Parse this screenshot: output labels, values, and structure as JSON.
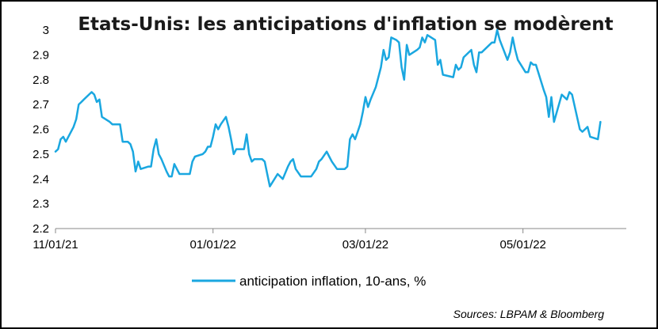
{
  "chart_data": {
    "type": "line",
    "title": "Etats-Unis: les anticipations d'inflation se modèrent",
    "xlabel": "",
    "ylabel": "",
    "ylim": [
      2.2,
      3.0
    ],
    "yticks": [
      "3",
      "2.9",
      "2.8",
      "2.7",
      "2.6",
      "2.5",
      "2.4",
      "2.3",
      "2.2"
    ],
    "xlim": [
      "2021-11-01",
      "2022-06-10"
    ],
    "xticks": [
      {
        "date": "2021-11-01",
        "label": "11/01/21"
      },
      {
        "date": "2022-01-01",
        "label": "01/01/22"
      },
      {
        "date": "2022-03-01",
        "label": "03/01/22"
      },
      {
        "date": "2022-05-01",
        "label": "05/01/22"
      }
    ],
    "grid": false,
    "legend_position": "bottom",
    "source": "Sources: LBPAM & Bloomberg",
    "series": [
      {
        "name": "anticipation inflation, 10-ans, %",
        "color": "#1aa7e0",
        "points": [
          [
            "2021-11-01",
            2.51
          ],
          [
            "2021-11-02",
            2.52
          ],
          [
            "2021-11-03",
            2.56
          ],
          [
            "2021-11-04",
            2.57
          ],
          [
            "2021-11-05",
            2.55
          ],
          [
            "2021-11-08",
            2.61
          ],
          [
            "2021-11-09",
            2.64
          ],
          [
            "2021-11-10",
            2.7
          ],
          [
            "2021-11-11",
            2.71
          ],
          [
            "2021-11-12",
            2.72
          ],
          [
            "2021-11-15",
            2.75
          ],
          [
            "2021-11-16",
            2.74
          ],
          [
            "2021-11-17",
            2.71
          ],
          [
            "2021-11-18",
            2.72
          ],
          [
            "2021-11-19",
            2.65
          ],
          [
            "2021-11-22",
            2.63
          ],
          [
            "2021-11-23",
            2.62
          ],
          [
            "2021-11-26",
            2.62
          ],
          [
            "2021-11-27",
            2.55
          ],
          [
            "2021-11-29",
            2.55
          ],
          [
            "2021-11-30",
            2.54
          ],
          [
            "2021-12-01",
            2.51
          ],
          [
            "2021-12-02",
            2.43
          ],
          [
            "2021-12-03",
            2.47
          ],
          [
            "2021-12-04",
            2.44
          ],
          [
            "2021-12-07",
            2.45
          ],
          [
            "2021-12-08",
            2.45
          ],
          [
            "2021-12-09",
            2.52
          ],
          [
            "2021-12-10",
            2.56
          ],
          [
            "2021-12-11",
            2.5
          ],
          [
            "2021-12-12",
            2.48
          ],
          [
            "2021-12-14",
            2.43
          ],
          [
            "2021-12-15",
            2.41
          ],
          [
            "2021-12-16",
            2.41
          ],
          [
            "2021-12-17",
            2.46
          ],
          [
            "2021-12-18",
            2.44
          ],
          [
            "2021-12-19",
            2.42
          ],
          [
            "2021-12-23",
            2.42
          ],
          [
            "2021-12-24",
            2.47
          ],
          [
            "2021-12-25",
            2.49
          ],
          [
            "2021-12-28",
            2.5
          ],
          [
            "2021-12-29",
            2.51
          ],
          [
            "2021-12-30",
            2.53
          ],
          [
            "2021-12-31",
            2.53
          ],
          [
            "2022-01-01",
            2.57
          ],
          [
            "2022-01-02",
            2.62
          ],
          [
            "2022-01-03",
            2.6
          ],
          [
            "2022-01-04",
            2.62
          ],
          [
            "2022-01-06",
            2.65
          ],
          [
            "2022-01-07",
            2.61
          ],
          [
            "2022-01-08",
            2.56
          ],
          [
            "2022-01-09",
            2.5
          ],
          [
            "2022-01-10",
            2.52
          ],
          [
            "2022-01-13",
            2.52
          ],
          [
            "2022-01-14",
            2.58
          ],
          [
            "2022-01-15",
            2.5
          ],
          [
            "2022-01-16",
            2.47
          ],
          [
            "2022-01-17",
            2.48
          ],
          [
            "2022-01-20",
            2.48
          ],
          [
            "2022-01-21",
            2.47
          ],
          [
            "2022-01-22",
            2.42
          ],
          [
            "2022-01-23",
            2.37
          ],
          [
            "2022-01-26",
            2.42
          ],
          [
            "2022-01-27",
            2.41
          ],
          [
            "2022-01-28",
            2.4
          ],
          [
            "2022-01-30",
            2.45
          ],
          [
            "2022-01-31",
            2.47
          ],
          [
            "2022-02-01",
            2.48
          ],
          [
            "2022-02-02",
            2.44
          ],
          [
            "2022-02-04",
            2.41
          ],
          [
            "2022-02-05",
            2.41
          ],
          [
            "2022-02-07",
            2.41
          ],
          [
            "2022-02-08",
            2.41
          ],
          [
            "2022-02-10",
            2.44
          ],
          [
            "2022-02-11",
            2.47
          ],
          [
            "2022-02-12",
            2.48
          ],
          [
            "2022-02-14",
            2.51
          ],
          [
            "2022-02-15",
            2.49
          ],
          [
            "2022-02-16",
            2.47
          ],
          [
            "2022-02-18",
            2.44
          ],
          [
            "2022-02-21",
            2.44
          ],
          [
            "2022-02-22",
            2.45
          ],
          [
            "2022-02-23",
            2.56
          ],
          [
            "2022-02-24",
            2.58
          ],
          [
            "2022-02-25",
            2.56
          ],
          [
            "2022-02-26",
            2.59
          ],
          [
            "2022-02-27",
            2.62
          ],
          [
            "2022-02-28",
            2.67
          ],
          [
            "2022-03-01",
            2.73
          ],
          [
            "2022-03-02",
            2.69
          ],
          [
            "2022-03-03",
            2.72
          ],
          [
            "2022-03-05",
            2.77
          ],
          [
            "2022-03-07",
            2.85
          ],
          [
            "2022-03-08",
            2.92
          ],
          [
            "2022-03-09",
            2.88
          ],
          [
            "2022-03-10",
            2.89
          ],
          [
            "2022-03-11",
            2.97
          ],
          [
            "2022-03-13",
            2.96
          ],
          [
            "2022-03-14",
            2.95
          ],
          [
            "2022-03-15",
            2.85
          ],
          [
            "2022-03-16",
            2.8
          ],
          [
            "2022-03-17",
            2.94
          ],
          [
            "2022-03-18",
            2.9
          ],
          [
            "2022-03-21",
            2.92
          ],
          [
            "2022-03-22",
            2.93
          ],
          [
            "2022-03-23",
            2.97
          ],
          [
            "2022-03-24",
            2.95
          ],
          [
            "2022-03-25",
            2.98
          ],
          [
            "2022-03-28",
            2.96
          ],
          [
            "2022-03-29",
            2.86
          ],
          [
            "2022-03-30",
            2.88
          ],
          [
            "2022-03-31",
            2.82
          ],
          [
            "2022-04-04",
            2.81
          ],
          [
            "2022-04-05",
            2.86
          ],
          [
            "2022-04-06",
            2.84
          ],
          [
            "2022-04-07",
            2.85
          ],
          [
            "2022-04-08",
            2.89
          ],
          [
            "2022-04-11",
            2.92
          ],
          [
            "2022-04-12",
            2.86
          ],
          [
            "2022-04-13",
            2.83
          ],
          [
            "2022-04-14",
            2.91
          ],
          [
            "2022-04-15",
            2.91
          ],
          [
            "2022-04-18",
            2.94
          ],
          [
            "2022-04-19",
            2.95
          ],
          [
            "2022-04-20",
            2.95
          ],
          [
            "2022-04-21",
            3.0
          ],
          [
            "2022-04-22",
            2.96
          ],
          [
            "2022-04-25",
            2.88
          ],
          [
            "2022-04-26",
            2.91
          ],
          [
            "2022-04-27",
            2.97
          ],
          [
            "2022-04-28",
            2.92
          ],
          [
            "2022-04-29",
            2.88
          ],
          [
            "2022-05-02",
            2.83
          ],
          [
            "2022-05-03",
            2.83
          ],
          [
            "2022-05-04",
            2.87
          ],
          [
            "2022-05-05",
            2.86
          ],
          [
            "2022-05-06",
            2.86
          ],
          [
            "2022-05-09",
            2.76
          ],
          [
            "2022-05-10",
            2.73
          ],
          [
            "2022-05-11",
            2.65
          ],
          [
            "2022-05-12",
            2.73
          ],
          [
            "2022-05-13",
            2.63
          ],
          [
            "2022-05-16",
            2.74
          ],
          [
            "2022-05-17",
            2.73
          ],
          [
            "2022-05-18",
            2.72
          ],
          [
            "2022-05-19",
            2.75
          ],
          [
            "2022-05-20",
            2.74
          ],
          [
            "2022-05-23",
            2.6
          ],
          [
            "2022-05-24",
            2.59
          ],
          [
            "2022-05-25",
            2.6
          ],
          [
            "2022-05-26",
            2.61
          ],
          [
            "2022-05-27",
            2.57
          ],
          [
            "2022-05-30",
            2.56
          ],
          [
            "2022-05-31",
            2.63
          ]
        ]
      }
    ]
  }
}
